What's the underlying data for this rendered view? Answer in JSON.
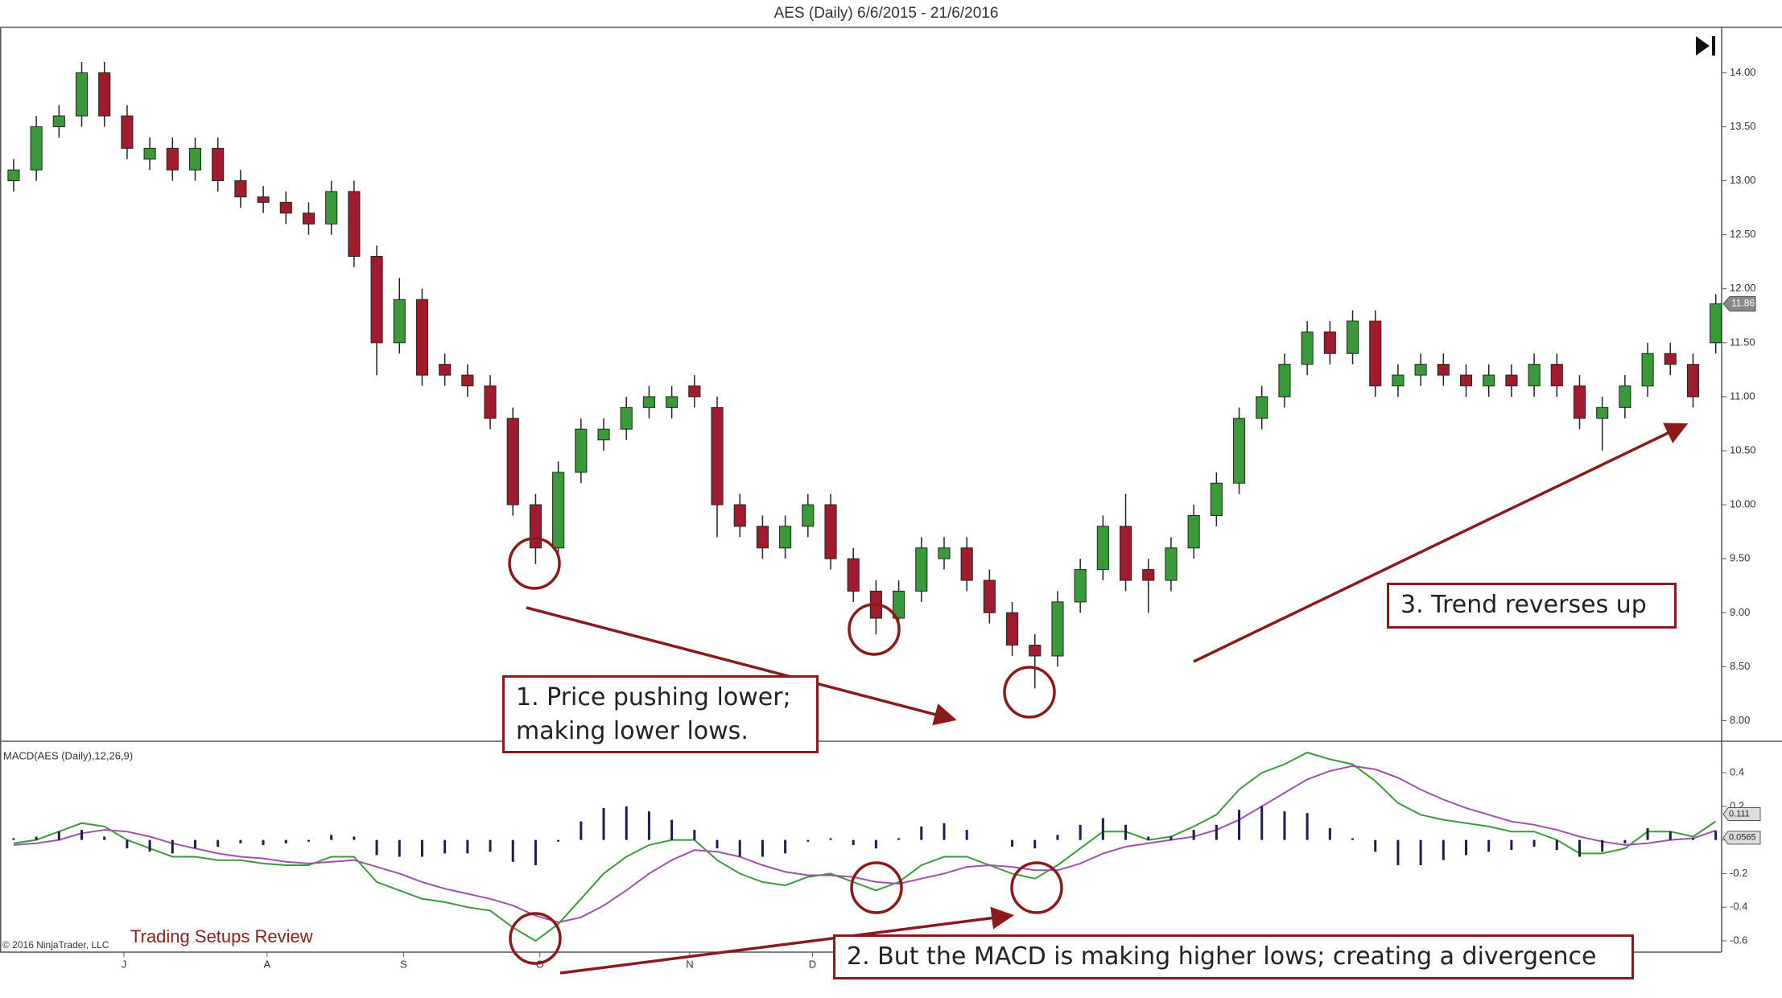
{
  "title": "AES (Daily)  6/6/2015 - 21/6/2016",
  "footer": {
    "copyright": "© 2016 NinjaTrader, LLC",
    "watermark": "Trading Setups Review"
  },
  "chart_data": [
    {
      "type": "candlestick",
      "xlim": [
        -0.6,
        75.26
      ],
      "ylim": [
        7.81,
        14.42
      ],
      "yticks": [
        {
          "value": 8,
          "label": "8.00"
        },
        {
          "value": 8.5,
          "label": "8.50"
        },
        {
          "value": 9,
          "label": "9.00"
        },
        {
          "value": 9.5,
          "label": "9.50"
        },
        {
          "value": 10,
          "label": "10.00"
        },
        {
          "value": 10.5,
          "label": "10.50"
        },
        {
          "value": 11,
          "label": "11.00"
        },
        {
          "value": 11.5,
          "label": "11.50"
        },
        {
          "value": 12,
          "label": "12.00"
        },
        {
          "value": 12.5,
          "label": "12.50"
        },
        {
          "value": 13,
          "label": "13.00"
        },
        {
          "value": 13.5,
          "label": "13.50"
        },
        {
          "value": 14,
          "label": "14.00"
        }
      ],
      "up_color": "#3a9a3a",
      "down_color": "#a01c2c",
      "open": [
        13.0,
        13.1,
        13.5,
        13.6,
        14.0,
        13.6,
        13.2,
        13.3,
        13.1,
        13.3,
        13.0,
        12.85,
        12.8,
        12.7,
        12.6,
        12.9,
        12.3,
        11.5,
        11.9,
        11.3,
        11.2,
        11.1,
        10.8,
        10.0,
        9.6,
        10.3,
        10.6,
        10.7,
        10.9,
        10.9,
        11.1,
        10.9,
        10.0,
        9.8,
        9.6,
        9.8,
        10.0,
        9.5,
        9.2,
        8.95,
        9.2,
        9.5,
        9.6,
        9.3,
        9.0,
        8.7,
        8.6,
        9.1,
        9.4,
        9.8,
        9.4,
        9.3,
        9.6,
        9.9,
        10.2,
        10.8,
        11.0,
        11.3,
        11.6,
        11.4,
        11.7,
        11.1,
        11.2,
        11.3,
        11.2,
        11.1,
        11.2,
        11.1,
        11.3,
        11.1,
        10.8,
        10.9,
        11.1,
        11.4,
        11.3,
        11.5
      ],
      "high": [
        13.2,
        13.6,
        13.7,
        14.1,
        14.1,
        13.7,
        13.4,
        13.4,
        13.4,
        13.4,
        13.1,
        12.95,
        12.9,
        12.8,
        13.0,
        13.0,
        12.4,
        12.1,
        12.0,
        11.4,
        11.3,
        11.2,
        10.9,
        10.1,
        10.4,
        10.8,
        10.8,
        11.0,
        11.1,
        11.1,
        11.2,
        11.0,
        10.1,
        9.9,
        9.9,
        10.1,
        10.1,
        9.6,
        9.3,
        9.3,
        9.7,
        9.7,
        9.7,
        9.4,
        9.1,
        8.8,
        9.2,
        9.5,
        9.9,
        10.1,
        9.5,
        9.7,
        10.0,
        10.3,
        10.9,
        11.1,
        11.4,
        11.7,
        11.7,
        11.8,
        11.8,
        11.3,
        11.4,
        11.4,
        11.3,
        11.3,
        11.3,
        11.4,
        11.4,
        11.2,
        11.0,
        11.2,
        11.5,
        11.5,
        11.4,
        11.95
      ],
      "low": [
        12.9,
        13.0,
        13.4,
        13.5,
        13.5,
        13.2,
        13.1,
        13.0,
        13.0,
        12.9,
        12.75,
        12.7,
        12.6,
        12.5,
        12.5,
        12.2,
        11.2,
        11.4,
        11.1,
        11.1,
        11.0,
        10.7,
        9.9,
        9.45,
        9.5,
        10.2,
        10.5,
        10.6,
        10.8,
        10.8,
        10.9,
        9.7,
        9.7,
        9.5,
        9.5,
        9.7,
        9.4,
        9.1,
        8.8,
        8.85,
        9.1,
        9.4,
        9.2,
        8.9,
        8.6,
        8.3,
        8.5,
        9.0,
        9.3,
        9.2,
        9.0,
        9.2,
        9.5,
        9.8,
        10.1,
        10.7,
        10.9,
        11.2,
        11.3,
        11.3,
        11.0,
        11.0,
        11.1,
        11.1,
        11.0,
        11.0,
        11.0,
        11.0,
        11.0,
        10.7,
        10.5,
        10.8,
        11.0,
        11.2,
        10.9,
        11.4
      ],
      "close": [
        13.1,
        13.5,
        13.6,
        14.0,
        13.6,
        13.3,
        13.3,
        13.1,
        13.3,
        13.0,
        12.85,
        12.8,
        12.7,
        12.6,
        12.9,
        12.3,
        11.5,
        11.9,
        11.2,
        11.2,
        11.1,
        10.8,
        10.0,
        9.6,
        10.3,
        10.7,
        10.7,
        10.9,
        11.0,
        11.0,
        11.0,
        10.0,
        9.8,
        9.6,
        9.8,
        10.0,
        9.5,
        9.2,
        8.95,
        9.2,
        9.6,
        9.6,
        9.3,
        9.0,
        8.7,
        8.6,
        9.1,
        9.4,
        9.8,
        9.3,
        9.3,
        9.6,
        9.9,
        10.2,
        10.8,
        11.0,
        11.3,
        11.6,
        11.4,
        11.7,
        11.1,
        11.2,
        11.3,
        11.2,
        11.1,
        11.2,
        11.1,
        11.3,
        11.1,
        10.8,
        10.9,
        11.1,
        11.4,
        11.3,
        11.0,
        11.86
      ],
      "annotations": [
        {
          "lines": [
            "1. Price pushing lower;",
            "making lower lows."
          ]
        },
        {
          "lines": [
            "2. But the MACD is making higher lows; creating a divergence"
          ]
        },
        {
          "lines": [
            "3. Trend reverses up"
          ]
        }
      ]
    },
    {
      "type": "macd",
      "title": "MACD(AES (Daily),12,26,9)",
      "xlim": [
        -0.6,
        75.26
      ],
      "xticks": [
        {
          "value": 4.86,
          "label": "J"
        },
        {
          "value": 11.17,
          "label": "A"
        },
        {
          "value": 17.18,
          "label": "S"
        },
        {
          "value": 23.19,
          "label": "O"
        },
        {
          "value": 29.79,
          "label": "N"
        },
        {
          "value": 35.2,
          "label": "D"
        }
      ],
      "ylim": [
        -0.667,
        0.587
      ],
      "yticks": [
        0.4,
        0.2,
        0,
        -0.2,
        -0.4,
        -0.6
      ],
      "series": [
        {
          "kind": "line",
          "color": "#3c9a3c",
          "values": [
            -0.02,
            0.0,
            0.05,
            0.1,
            0.08,
            0.0,
            -0.05,
            -0.1,
            -0.1,
            -0.12,
            -0.12,
            -0.14,
            -0.15,
            -0.15,
            -0.1,
            -0.1,
            -0.25,
            -0.3,
            -0.35,
            -0.37,
            -0.4,
            -0.42,
            -0.52,
            -0.6,
            -0.5,
            -0.35,
            -0.2,
            -0.1,
            -0.03,
            0.0,
            0.0,
            -0.12,
            -0.2,
            -0.25,
            -0.27,
            -0.22,
            -0.2,
            -0.25,
            -0.3,
            -0.25,
            -0.15,
            -0.1,
            -0.1,
            -0.15,
            -0.2,
            -0.23,
            -0.15,
            -0.05,
            0.05,
            0.05,
            0.0,
            0.02,
            0.08,
            0.15,
            0.3,
            0.4,
            0.45,
            0.52,
            0.48,
            0.45,
            0.35,
            0.22,
            0.15,
            0.12,
            0.1,
            0.08,
            0.05,
            0.05,
            0.0,
            -0.08,
            -0.08,
            -0.05,
            0.05,
            0.05,
            0.02,
            0.111
          ]
        },
        {
          "kind": "line",
          "color": "#a050b0",
          "values": [
            -0.03,
            -0.02,
            0.0,
            0.04,
            0.06,
            0.05,
            0.02,
            -0.02,
            -0.05,
            -0.08,
            -0.1,
            -0.11,
            -0.13,
            -0.14,
            -0.13,
            -0.12,
            -0.16,
            -0.2,
            -0.25,
            -0.29,
            -0.32,
            -0.35,
            -0.39,
            -0.45,
            -0.49,
            -0.46,
            -0.39,
            -0.3,
            -0.2,
            -0.12,
            -0.06,
            -0.07,
            -0.1,
            -0.15,
            -0.19,
            -0.21,
            -0.21,
            -0.22,
            -0.25,
            -0.26,
            -0.23,
            -0.2,
            -0.16,
            -0.15,
            -0.16,
            -0.18,
            -0.18,
            -0.14,
            -0.08,
            -0.04,
            -0.02,
            0.0,
            0.02,
            0.06,
            0.12,
            0.2,
            0.28,
            0.36,
            0.41,
            0.44,
            0.42,
            0.37,
            0.3,
            0.24,
            0.19,
            0.15,
            0.11,
            0.09,
            0.06,
            0.02,
            -0.01,
            -0.03,
            -0.02,
            0.0,
            0.01,
            0.0565
          ]
        },
        {
          "kind": "histogram",
          "color": "#1c1c50",
          "values": [
            0.01,
            0.02,
            0.05,
            0.06,
            0.02,
            -0.05,
            -0.07,
            -0.08,
            -0.05,
            -0.04,
            -0.02,
            -0.03,
            -0.02,
            -0.01,
            0.03,
            0.02,
            -0.09,
            -0.1,
            -0.1,
            -0.08,
            -0.08,
            -0.07,
            -0.13,
            -0.15,
            -0.01,
            0.11,
            0.19,
            0.2,
            0.17,
            0.12,
            0.06,
            -0.05,
            -0.1,
            -0.1,
            -0.08,
            -0.01,
            0.01,
            -0.03,
            -0.05,
            0.01,
            0.08,
            0.1,
            0.06,
            0.0,
            -0.04,
            -0.05,
            0.03,
            0.09,
            0.13,
            0.09,
            0.02,
            0.02,
            0.06,
            0.09,
            0.18,
            0.2,
            0.17,
            0.16,
            0.07,
            0.01,
            -0.07,
            -0.15,
            -0.15,
            -0.12,
            -0.09,
            -0.07,
            -0.06,
            -0.04,
            -0.06,
            -0.1,
            -0.07,
            -0.02,
            0.07,
            0.05,
            0.01,
            0.0545
          ]
        }
      ]
    }
  ]
}
